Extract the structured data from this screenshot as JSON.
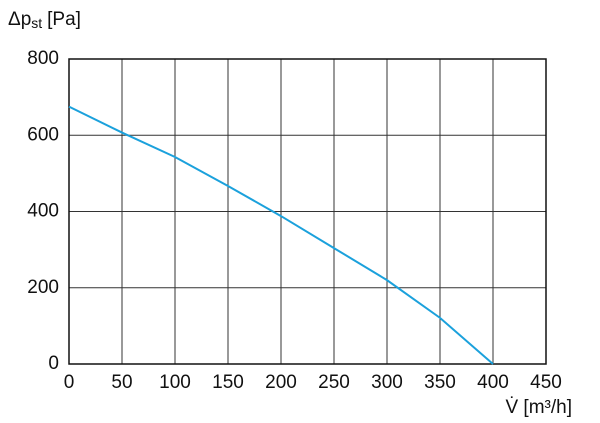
{
  "chart_data": {
    "type": "line",
    "y_label": {
      "main": "Δp",
      "sub": "st",
      "unit": "[Pa]"
    },
    "x_label": "V̇ [m³/h]",
    "x": [
      0,
      50,
      100,
      150,
      200,
      250,
      300,
      350,
      400
    ],
    "series": [
      {
        "color": "#1ba1dc",
        "values": [
          675,
          607,
          543,
          467,
          388,
          304,
          220,
          121,
          0
        ]
      }
    ],
    "xlim": [
      0,
      450
    ],
    "xticks": [
      0,
      50,
      100,
      150,
      200,
      250,
      300,
      350,
      400,
      450
    ],
    "ylim": [
      0,
      800
    ],
    "yticks": [
      0,
      200,
      400,
      600,
      800
    ],
    "grid": true
  }
}
